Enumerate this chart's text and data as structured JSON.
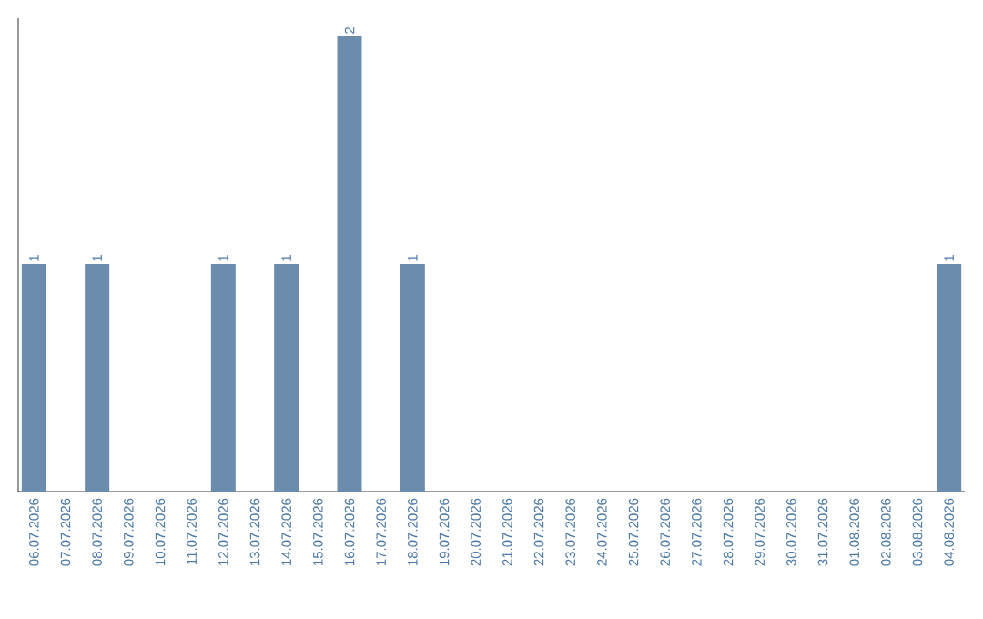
{
  "chart_data": {
    "type": "bar",
    "categories": [
      "06.07.2026",
      "07.07.2026",
      "08.07.2026",
      "09.07.2026",
      "10.07.2026",
      "11.07.2026",
      "12.07.2026",
      "13.07.2026",
      "14.07.2026",
      "15.07.2026",
      "16.07.2026",
      "17.07.2026",
      "18.07.2026",
      "19.07.2026",
      "20.07.2026",
      "21.07.2026",
      "22.07.2026",
      "23.07.2026",
      "24.07.2026",
      "25.07.2026",
      "26.07.2026",
      "27.07.2026",
      "28.07.2026",
      "29.07.2026",
      "30.07.2026",
      "31.07.2026",
      "01.08.2026",
      "02.08.2026",
      "03.08.2026",
      "04.08.2026"
    ],
    "values": [
      1,
      0,
      1,
      0,
      0,
      0,
      1,
      0,
      1,
      0,
      2,
      0,
      1,
      0,
      0,
      0,
      0,
      0,
      0,
      0,
      0,
      0,
      0,
      0,
      0,
      0,
      0,
      0,
      0,
      1
    ],
    "value_labels": [
      "1",
      null,
      "1",
      null,
      null,
      null,
      "1",
      null,
      "1",
      null,
      "2",
      null,
      "1",
      null,
      null,
      null,
      null,
      null,
      null,
      null,
      null,
      null,
      null,
      null,
      null,
      null,
      null,
      null,
      null,
      "1"
    ],
    "color": "#6b8cad"
  }
}
